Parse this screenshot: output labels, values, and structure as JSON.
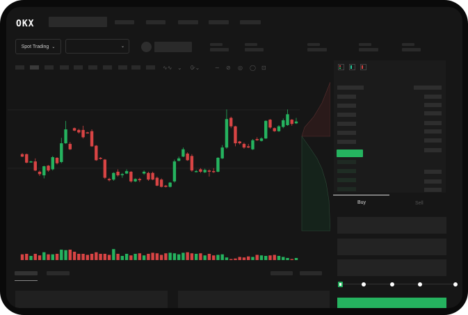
{
  "header": {
    "logo": "OKX",
    "nav_items": [
      "",
      "",
      "",
      "",
      ""
    ]
  },
  "market_bar": {
    "trading_type": "Spot Trading",
    "pair_dropdown": ""
  },
  "toolbar": {
    "icons": [
      "indicator-icon",
      "candle-type-icon",
      "ruler-icon",
      "line-tool-icon",
      "pencil-icon",
      "camera-icon",
      "settings-icon",
      "fullscreen-icon"
    ]
  },
  "orderbook": {
    "icons": [
      "book-both-icon",
      "book-buy-icon",
      "book-sell-icon"
    ]
  },
  "trade_form": {
    "tabs": {
      "buy": "Buy",
      "sell": "Sell"
    },
    "active_tab": "Buy",
    "slider_percent": 0,
    "slider_steps": [
      0,
      25,
      50,
      75,
      100
    ]
  },
  "colors": {
    "up": "#25b35f",
    "down": "#d84444",
    "background": "#161616",
    "panel": "#1b1b1b"
  },
  "chart": {
    "type": "candlestick",
    "grid": true,
    "ylim": [
      0,
      150
    ],
    "candles_ohlc": [
      [
        67,
        69,
        62,
        63
      ],
      [
        67,
        68,
        52,
        53
      ],
      [
        54,
        56,
        53,
        55
      ],
      [
        55,
        60,
        39,
        40
      ],
      [
        38,
        40,
        31,
        34
      ],
      [
        32,
        48,
        27,
        47
      ],
      [
        48,
        49,
        38,
        40
      ],
      [
        42,
        64,
        40,
        62
      ],
      [
        61,
        62,
        50,
        52
      ],
      [
        54,
        94,
        52,
        85
      ],
      [
        85,
        122,
        84,
        108
      ],
      [
        84,
        87,
        74,
        75
      ],
      [
        110,
        111,
        105,
        106
      ],
      [
        107,
        109,
        101,
        103
      ],
      [
        107,
        114,
        93,
        95
      ],
      [
        103,
        104,
        101,
        102
      ],
      [
        105,
        108,
        79,
        80
      ],
      [
        81,
        82,
        56,
        57
      ],
      [
        61,
        62,
        58,
        60
      ],
      [
        58,
        59,
        26,
        28
      ],
      [
        26,
        28,
        22,
        24
      ],
      [
        25,
        37,
        23,
        36
      ],
      [
        38,
        42,
        30,
        32
      ],
      [
        33,
        36,
        28,
        34
      ],
      [
        35,
        42,
        34,
        39
      ],
      [
        38,
        39,
        20,
        22
      ],
      [
        22,
        27,
        21,
        26
      ],
      [
        26,
        28,
        21,
        24
      ],
      [
        35,
        40,
        33,
        38
      ],
      [
        36,
        38,
        23,
        25
      ],
      [
        36,
        38,
        24,
        25
      ],
      [
        28,
        30,
        14,
        15
      ],
      [
        25,
        27,
        12,
        13
      ],
      [
        15,
        16,
        12,
        13
      ],
      [
        13,
        21,
        12,
        20
      ],
      [
        22,
        58,
        20,
        55
      ],
      [
        56,
        63,
        55,
        60
      ],
      [
        63,
        78,
        62,
        75
      ],
      [
        68,
        70,
        56,
        57
      ],
      [
        64,
        67,
        38,
        40
      ],
      [
        38,
        41,
        37,
        39
      ],
      [
        42,
        44,
        36,
        38
      ],
      [
        37,
        43,
        36,
        41
      ],
      [
        40,
        42,
        30,
        38
      ],
      [
        39,
        44,
        36,
        38
      ],
      [
        38,
        62,
        37,
        61
      ],
      [
        60,
        82,
        59,
        78
      ],
      [
        78,
        141,
        76,
        125
      ],
      [
        127,
        129,
        110,
        113
      ],
      [
        113,
        114,
        80,
        85
      ],
      [
        88,
        89,
        83,
        85
      ],
      [
        84,
        86,
        76,
        78
      ],
      [
        80,
        84,
        77,
        78
      ],
      [
        75,
        92,
        74,
        90
      ],
      [
        92,
        95,
        89,
        90
      ],
      [
        89,
        95,
        88,
        93
      ],
      [
        93,
        123,
        92,
        122
      ],
      [
        124,
        125,
        109,
        111
      ],
      [
        110,
        111,
        104,
        105
      ],
      [
        105,
        115,
        104,
        113
      ],
      [
        112,
        126,
        110,
        123
      ],
      [
        115,
        141,
        114,
        133
      ],
      [
        124,
        125,
        114,
        117
      ],
      [
        118,
        127,
        117,
        121
      ]
    ],
    "volumes": [
      11,
      12,
      8,
      12,
      9,
      15,
      11,
      11,
      12,
      20,
      19,
      20,
      16,
      12,
      12,
      10,
      12,
      15,
      12,
      12,
      10,
      21,
      12,
      8,
      12,
      9,
      12,
      13,
      9,
      12,
      14,
      13,
      10,
      13,
      14,
      13,
      11,
      14,
      15,
      13,
      12,
      13,
      9,
      12,
      9,
      10,
      11,
      5,
      2,
      3,
      6,
      5,
      7,
      6,
      10,
      9,
      8,
      9,
      10,
      8,
      6,
      4,
      2,
      4
    ]
  }
}
